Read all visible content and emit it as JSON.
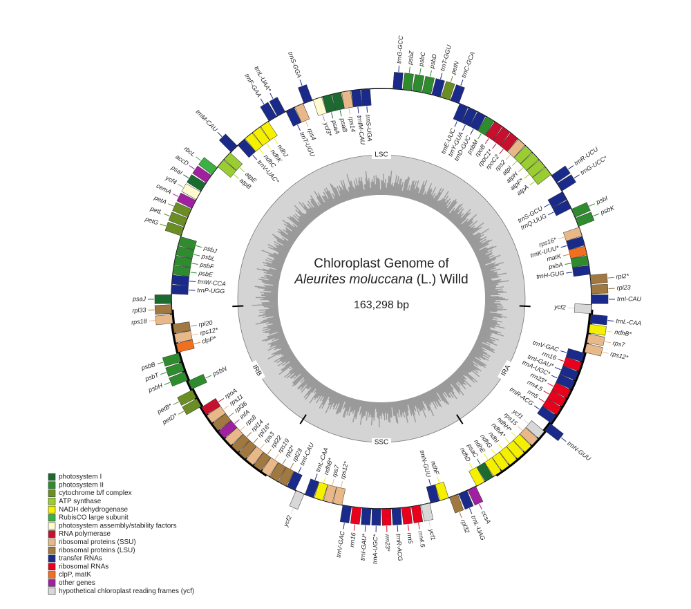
{
  "map": {
    "title_line1": "Chloroplast Genome of",
    "species": "Aleurites moluccana",
    "authority": "(L.) Willd",
    "length": "163,298 bp",
    "regions": [
      "LSC",
      "IRA",
      "SSC",
      "IRB"
    ],
    "legend": [
      {
        "label": "photosystem I",
        "color": "#1b6b30"
      },
      {
        "label": "photosystem II",
        "color": "#2e8b2e"
      },
      {
        "label": "cytochrome b/f complex",
        "color": "#6b8e23"
      },
      {
        "label": "ATP synthase",
        "color": "#9acd32"
      },
      {
        "label": "NADH dehydrogenase",
        "color": "#f5f000"
      },
      {
        "label": "RubisCO large subunit",
        "color": "#3cb043"
      },
      {
        "label": "photosystem assembly/stability factors",
        "color": "#fffad0"
      },
      {
        "label": "RNA polymerase",
        "color": "#c8102e"
      },
      {
        "label": "ribosomal proteins (SSU)",
        "color": "#e8b888"
      },
      {
        "label": "ribosomal proteins (LSU)",
        "color": "#a07840"
      },
      {
        "label": "transfer RNAs",
        "color": "#1a2a8a"
      },
      {
        "label": "ribosomal RNAs",
        "color": "#e8001c"
      },
      {
        "label": "clpP, matK",
        "color": "#f07020"
      },
      {
        "label": "other genes",
        "color": "#a020a0"
      },
      {
        "label": "hypothetical chloroplast reading frames (ycf)",
        "color": "#d8d8d8"
      }
    ],
    "genes": [
      {
        "label": "trnG-GCC",
        "group": 10,
        "side": "out"
      },
      {
        "label": "psbZ",
        "group": 1,
        "side": "out"
      },
      {
        "label": "psbC",
        "group": 1,
        "side": "out"
      },
      {
        "label": "psbD",
        "group": 1,
        "side": "out"
      },
      {
        "label": "trnT-GGU",
        "group": 10,
        "side": "out"
      },
      {
        "label": "petN",
        "group": 2,
        "side": "out"
      },
      {
        "label": "trnC-GCA",
        "group": 10,
        "side": "out"
      },
      {
        "label": "trnE-UUC",
        "group": 10,
        "side": "in"
      },
      {
        "label": "trnY-GUA",
        "group": 10,
        "side": "in"
      },
      {
        "label": "trnD-GUC",
        "group": 10,
        "side": "in"
      },
      {
        "label": "psbM",
        "group": 1,
        "side": "in"
      },
      {
        "label": "rpoB",
        "group": 7,
        "side": "in"
      },
      {
        "label": "rpoC1*",
        "group": 7,
        "side": "in"
      },
      {
        "label": "rpoC2",
        "group": 7,
        "side": "in"
      },
      {
        "label": "rps2",
        "group": 8,
        "side": "in"
      },
      {
        "label": "atpI",
        "group": 3,
        "side": "in"
      },
      {
        "label": "atpH",
        "group": 3,
        "side": "in"
      },
      {
        "label": "atpF*",
        "group": 3,
        "side": "in"
      },
      {
        "label": "atpA",
        "group": 3,
        "side": "in"
      },
      {
        "label": "trnR-UCU",
        "group": 10,
        "side": "out"
      },
      {
        "label": "trnG-UCC*",
        "group": 10,
        "side": "out"
      },
      {
        "label": "trnS-GCU",
        "group": 10,
        "side": "in"
      },
      {
        "label": "trnQ-UUG",
        "group": 10,
        "side": "in"
      },
      {
        "label": "psbI",
        "group": 1,
        "side": "out"
      },
      {
        "label": "psbK",
        "group": 1,
        "side": "out"
      },
      {
        "label": "rps16*",
        "group": 8,
        "side": "in"
      },
      {
        "label": "trnK-UUU*",
        "group": 10,
        "side": "in"
      },
      {
        "label": "matK",
        "group": 12,
        "side": "in"
      },
      {
        "label": "psbA",
        "group": 1,
        "side": "in"
      },
      {
        "label": "trnH-GUG",
        "group": 10,
        "side": "in"
      },
      {
        "label": "rpl2*",
        "group": 9,
        "side": "out"
      },
      {
        "label": "rpl23",
        "group": 9,
        "side": "out"
      },
      {
        "label": "trnI-CAU",
        "group": 10,
        "side": "out"
      },
      {
        "label": "ycf2",
        "group": 14,
        "side": "in"
      },
      {
        "label": "trnL-CAA",
        "group": 10,
        "side": "out"
      },
      {
        "label": "ndhB*",
        "group": 4,
        "side": "out"
      },
      {
        "label": "rps7",
        "group": 8,
        "side": "out"
      },
      {
        "label": "rps12*",
        "group": 8,
        "side": "out"
      },
      {
        "label": "trnV-GAC",
        "group": 10,
        "side": "in"
      },
      {
        "label": "rrn16",
        "group": 11,
        "side": "in"
      },
      {
        "label": "trnI-GAU*",
        "group": 10,
        "side": "in"
      },
      {
        "label": "trnA-UGC*",
        "group": 10,
        "side": "in"
      },
      {
        "label": "rrn23*",
        "group": 11,
        "side": "in"
      },
      {
        "label": "rrn4.5",
        "group": 11,
        "side": "in"
      },
      {
        "label": "rrn5",
        "group": 11,
        "side": "in"
      },
      {
        "label": "trnR-ACG",
        "group": 10,
        "side": "in"
      },
      {
        "label": "trnN-GUU",
        "group": 10,
        "side": "out"
      },
      {
        "label": "ycf1",
        "group": 14,
        "side": "in"
      },
      {
        "label": "rps15",
        "group": 8,
        "side": "in"
      },
      {
        "label": "ndhH*",
        "group": 4,
        "side": "in"
      },
      {
        "label": "ndhA*",
        "group": 4,
        "side": "in"
      },
      {
        "label": "ndhI",
        "group": 4,
        "side": "in"
      },
      {
        "label": "ndhG",
        "group": 4,
        "side": "in"
      },
      {
        "label": "ndhE",
        "group": 4,
        "side": "in"
      },
      {
        "label": "psaC",
        "group": 0,
        "side": "in"
      },
      {
        "label": "ndhD",
        "group": 4,
        "side": "in"
      },
      {
        "label": "ccsA",
        "group": 13,
        "side": "out"
      },
      {
        "label": "trnL-UAG",
        "group": 10,
        "side": "out"
      },
      {
        "label": "rpl32",
        "group": 9,
        "side": "out"
      },
      {
        "label": "ndhF",
        "group": 4,
        "side": "in"
      },
      {
        "label": "trnN-GUU",
        "group": 10,
        "side": "in"
      },
      {
        "label": "ycf1",
        "group": 14,
        "side": "out"
      },
      {
        "label": "rrn4.5",
        "group": 11,
        "side": "out"
      },
      {
        "label": "rrn5",
        "group": 11,
        "side": "out"
      },
      {
        "label": "trnR-ACG",
        "group": 10,
        "side": "out"
      },
      {
        "label": "rrn23*",
        "group": 11,
        "side": "out"
      },
      {
        "label": "trnA-UGC*",
        "group": 10,
        "side": "out"
      },
      {
        "label": "trnI-GAU*",
        "group": 10,
        "side": "out"
      },
      {
        "label": "rrn16",
        "group": 11,
        "side": "out"
      },
      {
        "label": "trnV-GAC",
        "group": 10,
        "side": "out"
      },
      {
        "label": "rps12*",
        "group": 8,
        "side": "in"
      },
      {
        "label": "rps7",
        "group": 8,
        "side": "in"
      },
      {
        "label": "ndhB*",
        "group": 4,
        "side": "in"
      },
      {
        "label": "trnL-CAA",
        "group": 10,
        "side": "in"
      },
      {
        "label": "ycf2",
        "group": 14,
        "side": "out"
      },
      {
        "label": "trnI-CAU",
        "group": 10,
        "side": "in"
      },
      {
        "label": "rpl23",
        "group": 9,
        "side": "in"
      },
      {
        "label": "rpl2*",
        "group": 9,
        "side": "in"
      },
      {
        "label": "rps19",
        "group": 8,
        "side": "in"
      },
      {
        "label": "rpl22",
        "group": 9,
        "side": "in"
      },
      {
        "label": "rps3",
        "group": 8,
        "side": "in"
      },
      {
        "label": "rpl16*",
        "group": 9,
        "side": "in"
      },
      {
        "label": "rpl14",
        "group": 9,
        "side": "in"
      },
      {
        "label": "rps8",
        "group": 8,
        "side": "in"
      },
      {
        "label": "infA",
        "group": 13,
        "side": "in"
      },
      {
        "label": "rpl36",
        "group": 9,
        "side": "in"
      },
      {
        "label": "rps11",
        "group": 8,
        "side": "in"
      },
      {
        "label": "rpoA",
        "group": 7,
        "side": "in"
      },
      {
        "label": "petD*",
        "group": 2,
        "side": "out"
      },
      {
        "label": "petB*",
        "group": 2,
        "side": "out"
      },
      {
        "label": "psbN",
        "group": 1,
        "side": "in"
      },
      {
        "label": "psbH",
        "group": 1,
        "side": "out"
      },
      {
        "label": "psbT",
        "group": 1,
        "side": "out"
      },
      {
        "label": "psbB",
        "group": 1,
        "side": "out"
      },
      {
        "label": "clpP*",
        "group": 12,
        "side": "in"
      },
      {
        "label": "rps12*",
        "group": 8,
        "side": "in"
      },
      {
        "label": "rpl20",
        "group": 9,
        "side": "in"
      },
      {
        "label": "rps18",
        "group": 8,
        "side": "out"
      },
      {
        "label": "rpl33",
        "group": 9,
        "side": "out"
      },
      {
        "label": "psaJ",
        "group": 0,
        "side": "out"
      },
      {
        "label": "trnP-UGG",
        "group": 10,
        "side": "in"
      },
      {
        "label": "trnW-CCA",
        "group": 10,
        "side": "in"
      },
      {
        "label": "psbE",
        "group": 1,
        "side": "in"
      },
      {
        "label": "psbF",
        "group": 1,
        "side": "in"
      },
      {
        "label": "psbL",
        "group": 1,
        "side": "in"
      },
      {
        "label": "psbJ",
        "group": 1,
        "side": "in"
      },
      {
        "label": "petG",
        "group": 2,
        "side": "out"
      },
      {
        "label": "petL",
        "group": 2,
        "side": "out"
      },
      {
        "label": "petA",
        "group": 2,
        "side": "out"
      },
      {
        "label": "cemA",
        "group": 13,
        "side": "out"
      },
      {
        "label": "ycf4",
        "group": 6,
        "side": "out"
      },
      {
        "label": "psaI",
        "group": 0,
        "side": "out"
      },
      {
        "label": "accD",
        "group": 13,
        "side": "out"
      },
      {
        "label": "rbcL",
        "group": 5,
        "side": "out"
      },
      {
        "label": "atpB",
        "group": 3,
        "side": "in"
      },
      {
        "label": "atpE",
        "group": 3,
        "side": "in"
      },
      {
        "label": "trnM-CAU",
        "group": 10,
        "side": "out"
      },
      {
        "label": "trnV-UAC*",
        "group": 10,
        "side": "in"
      },
      {
        "label": "ndhC",
        "group": 4,
        "side": "in"
      },
      {
        "label": "ndhK",
        "group": 4,
        "side": "in"
      },
      {
        "label": "ndhJ",
        "group": 4,
        "side": "in"
      },
      {
        "label": "trnF-GAA",
        "group": 10,
        "side": "out"
      },
      {
        "label": "trnL-UAA*",
        "group": 10,
        "side": "out"
      },
      {
        "label": "trnT-UGU",
        "group": 10,
        "side": "in"
      },
      {
        "label": "rps4",
        "group": 8,
        "side": "in"
      },
      {
        "label": "trnS-GGA",
        "group": 10,
        "side": "out"
      },
      {
        "label": "ycf3*",
        "group": 6,
        "side": "in"
      },
      {
        "label": "psaA",
        "group": 0,
        "side": "in"
      },
      {
        "label": "psaB",
        "group": 0,
        "side": "in"
      },
      {
        "label": "rps14",
        "group": 8,
        "side": "in"
      },
      {
        "label": "trnfM-CAU",
        "group": 10,
        "side": "in"
      },
      {
        "label": "trnS-UGA",
        "group": 10,
        "side": "in"
      }
    ]
  }
}
